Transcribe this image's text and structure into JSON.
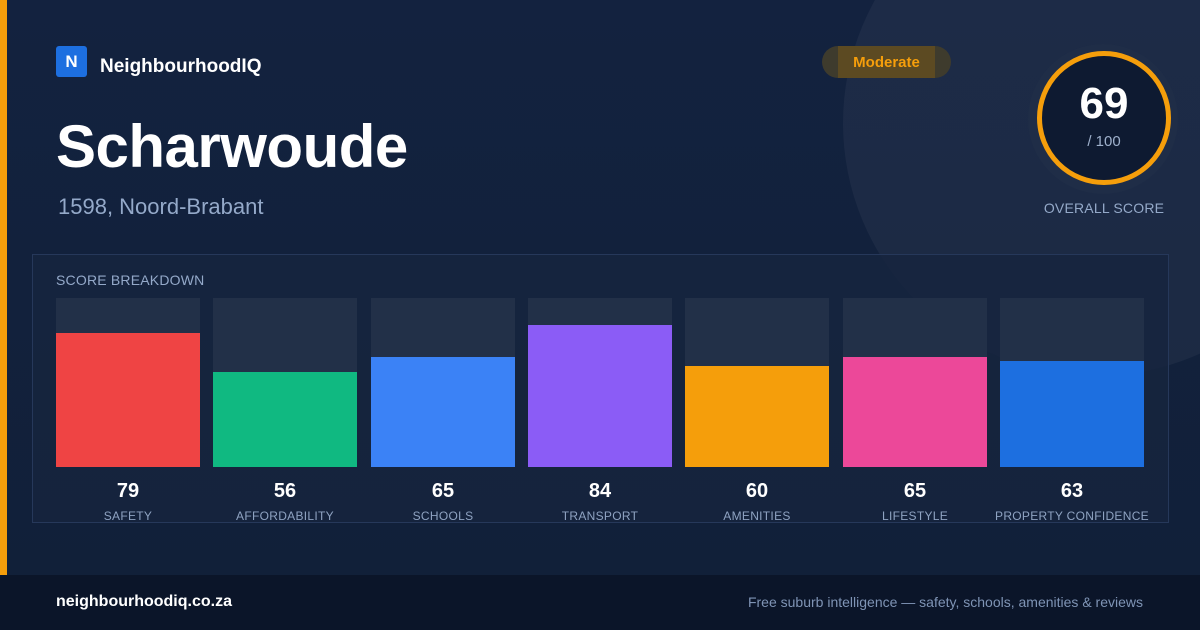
{
  "brand": {
    "logo_letter": "N",
    "name": "NeighbourhoodIQ"
  },
  "suburb": {
    "name": "Scharwoude",
    "location": "1598, Noord-Brabant"
  },
  "rating_badge": "Moderate",
  "overall": {
    "score": "69",
    "max": "/ 100",
    "label": "OVERALL SCORE",
    "ring_color": "#f59e0b"
  },
  "breakdown": {
    "title": "SCORE BREAKDOWN",
    "max": 100
  },
  "chart_data": {
    "type": "bar",
    "categories": [
      "SAFETY",
      "AFFORDABILITY",
      "SCHOOLS",
      "TRANSPORT",
      "AMENITIES",
      "LIFESTYLE",
      "PROPERTY CONFIDENCE"
    ],
    "values": [
      79,
      56,
      65,
      84,
      60,
      65,
      63
    ],
    "colors": [
      "#ef4444",
      "#10b981",
      "#3b82f6",
      "#8b5cf6",
      "#f59e0b",
      "#ec4899",
      "#1d6fe0"
    ],
    "ylim": [
      0,
      100
    ]
  },
  "footer": {
    "url": "neighbourhoodiq.co.za",
    "tagline": "Free suburb intelligence — safety, schools, amenities & reviews"
  }
}
